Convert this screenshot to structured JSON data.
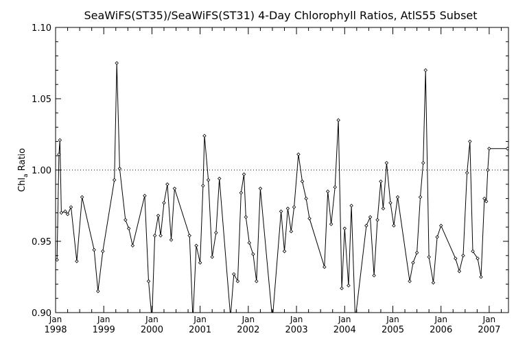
{
  "chart_data": {
    "type": "line",
    "title": "SeaWiFS(ST35)/SeaWiFS(ST31) 4-Day Chlorophyll Ratios, AtlS55 Subset",
    "ylabel_main": "Chl",
    "ylabel_sub": "a",
    "ylabel_rest": " Ratio",
    "xlabel": "",
    "ylim": [
      0.9,
      1.1
    ],
    "xlim": [
      1998.0,
      2007.4
    ],
    "yticks": [
      "0.90",
      "0.95",
      "1.00",
      "1.05",
      "1.10"
    ],
    "ytick_values": [
      0.9,
      0.95,
      1.0,
      1.05,
      1.1
    ],
    "xticks": [
      {
        "month": "Jan",
        "year": "1998",
        "value": 1998
      },
      {
        "month": "Jan",
        "year": "1999",
        "value": 1999
      },
      {
        "month": "Jan",
        "year": "2000",
        "value": 2000
      },
      {
        "month": "Jan",
        "year": "2001",
        "value": 2001
      },
      {
        "month": "Jan",
        "year": "2002",
        "value": 2002
      },
      {
        "month": "Jan",
        "year": "2003",
        "value": 2003
      },
      {
        "month": "Jan",
        "year": "2004",
        "value": 2004
      },
      {
        "month": "Jan",
        "year": "2005",
        "value": 2005
      },
      {
        "month": "Jan",
        "year": "2006",
        "value": 2006
      },
      {
        "month": "Jan",
        "year": "2007",
        "value": 2007
      }
    ],
    "reference_line": 1.0,
    "grid": false,
    "series": [
      {
        "points": [
          [
            1998.03,
            0.937
          ],
          [
            1998.07,
            1.011
          ],
          [
            1998.09,
            1.021
          ],
          [
            1998.12,
            0.97
          ],
          [
            1998.2,
            0.971
          ],
          [
            1998.25,
            0.969
          ],
          [
            1998.32,
            0.974
          ],
          [
            1998.44,
            0.936
          ],
          [
            1998.55,
            0.981
          ],
          [
            1998.8,
            0.944
          ],
          [
            1998.88,
            0.915
          ],
          [
            1998.98,
            0.943
          ],
          [
            1999.22,
            0.993
          ],
          [
            1999.27,
            1.075
          ],
          [
            1999.33,
            1.001
          ],
          [
            1999.45,
            0.965
          ],
          [
            1999.52,
            0.959
          ],
          [
            1999.6,
            0.947
          ],
          [
            1999.85,
            0.982
          ],
          [
            1999.93,
            0.922
          ],
          [
            2000.0,
            0.895
          ],
          [
            2000.06,
            0.954
          ],
          [
            2000.13,
            0.968
          ],
          [
            2000.18,
            0.954
          ],
          [
            2000.25,
            0.977
          ],
          [
            2000.32,
            0.99
          ],
          [
            2000.4,
            0.951
          ],
          [
            2000.47,
            0.987
          ],
          [
            2000.78,
            0.954
          ],
          [
            2000.85,
            0.895
          ],
          [
            2000.92,
            0.947
          ],
          [
            2001.0,
            0.935
          ],
          [
            2001.06,
            0.989
          ],
          [
            2001.09,
            1.024
          ],
          [
            2001.17,
            0.993
          ],
          [
            2001.25,
            0.939
          ],
          [
            2001.33,
            0.956
          ],
          [
            2001.4,
            0.994
          ],
          [
            2001.63,
            0.897
          ],
          [
            2001.7,
            0.927
          ],
          [
            2001.78,
            0.922
          ],
          [
            2001.85,
            0.984
          ],
          [
            2001.91,
            0.997
          ],
          [
            2001.95,
            0.967
          ],
          [
            2002.02,
            0.949
          ],
          [
            2002.1,
            0.941
          ],
          [
            2002.17,
            0.922
          ],
          [
            2002.25,
            0.987
          ],
          [
            2002.5,
            0.895
          ],
          [
            2002.68,
            0.971
          ],
          [
            2002.75,
            0.943
          ],
          [
            2002.82,
            0.973
          ],
          [
            2002.89,
            0.957
          ],
          [
            2002.95,
            0.974
          ],
          [
            2003.04,
            1.011
          ],
          [
            2003.12,
            0.992
          ],
          [
            2003.2,
            0.98
          ],
          [
            2003.27,
            0.966
          ],
          [
            2003.58,
            0.932
          ],
          [
            2003.65,
            0.985
          ],
          [
            2003.72,
            0.962
          ],
          [
            2003.8,
            0.988
          ],
          [
            2003.87,
            1.035
          ],
          [
            2003.94,
            0.917
          ],
          [
            2004.0,
            0.959
          ],
          [
            2004.08,
            0.919
          ],
          [
            2004.14,
            0.975
          ],
          [
            2004.22,
            0.895
          ],
          [
            2004.45,
            0.961
          ],
          [
            2004.53,
            0.967
          ],
          [
            2004.61,
            0.926
          ],
          [
            2004.68,
            0.965
          ],
          [
            2004.75,
            0.992
          ],
          [
            2004.8,
            0.973
          ],
          [
            2004.87,
            1.005
          ],
          [
            2004.95,
            0.977
          ],
          [
            2005.02,
            0.961
          ],
          [
            2005.1,
            0.981
          ],
          [
            2005.35,
            0.922
          ],
          [
            2005.42,
            0.935
          ],
          [
            2005.5,
            0.942
          ],
          [
            2005.57,
            0.981
          ],
          [
            2005.63,
            1.005
          ],
          [
            2005.68,
            1.07
          ],
          [
            2005.75,
            0.939
          ],
          [
            2005.84,
            0.921
          ],
          [
            2005.92,
            0.953
          ],
          [
            2006.0,
            0.961
          ],
          [
            2006.3,
            0.938
          ],
          [
            2006.38,
            0.929
          ],
          [
            2006.46,
            0.94
          ],
          [
            2006.54,
            0.998
          ],
          [
            2006.6,
            1.02
          ],
          [
            2006.66,
            0.943
          ],
          [
            2006.76,
            0.938
          ],
          [
            2006.83,
            0.925
          ],
          [
            2006.9,
            0.98
          ],
          [
            2006.94,
            0.978
          ],
          [
            2006.97,
            1.0
          ],
          [
            2007.0,
            1.015
          ],
          [
            2007.38,
            1.015
          ]
        ]
      }
    ]
  }
}
